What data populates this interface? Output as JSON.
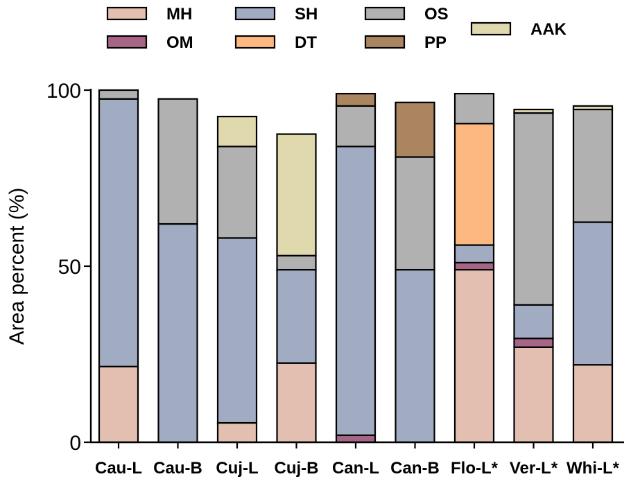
{
  "chart_data": {
    "type": "bar",
    "stacked": true,
    "xlabel": "",
    "ylabel": "Area percent (%)",
    "ylim": [
      0,
      100
    ],
    "yticks": [
      0,
      50,
      100
    ],
    "grid": false,
    "legend_position": "top",
    "categories": [
      "Cau-L",
      "Cau-B",
      "Cuj-L",
      "Cuj-B",
      "Can-L",
      "Can-B",
      "Flo-L*",
      "Ver-L*",
      "Whi-L*"
    ],
    "series": [
      {
        "name": "MH",
        "color": "#e3bfb2",
        "values": [
          21.5,
          0,
          5.5,
          22.5,
          0,
          0,
          49,
          27,
          22
        ]
      },
      {
        "name": "OM",
        "color": "#a66587",
        "values": [
          0,
          0,
          0,
          0,
          2,
          0,
          2,
          2.5,
          0
        ]
      },
      {
        "name": "SH",
        "color": "#a1abc1",
        "values": [
          76,
          62,
          52.5,
          26.5,
          82,
          49,
          5,
          9.5,
          40.5
        ]
      },
      {
        "name": "DT",
        "color": "#fdb881",
        "values": [
          0,
          0,
          0,
          0,
          0,
          0,
          34.5,
          0,
          0
        ]
      },
      {
        "name": "OS",
        "color": "#b1b1b1",
        "values": [
          2.5,
          35.5,
          26,
          4,
          11.5,
          32,
          8.5,
          54.5,
          32
        ]
      },
      {
        "name": "PP",
        "color": "#ab8560",
        "values": [
          0,
          0,
          0,
          0,
          3.5,
          15.5,
          0,
          0,
          0
        ]
      },
      {
        "name": "AAK",
        "color": "#dfd9ad",
        "values": [
          0,
          0,
          8.5,
          34.5,
          0,
          0,
          0,
          1,
          1
        ]
      }
    ]
  }
}
